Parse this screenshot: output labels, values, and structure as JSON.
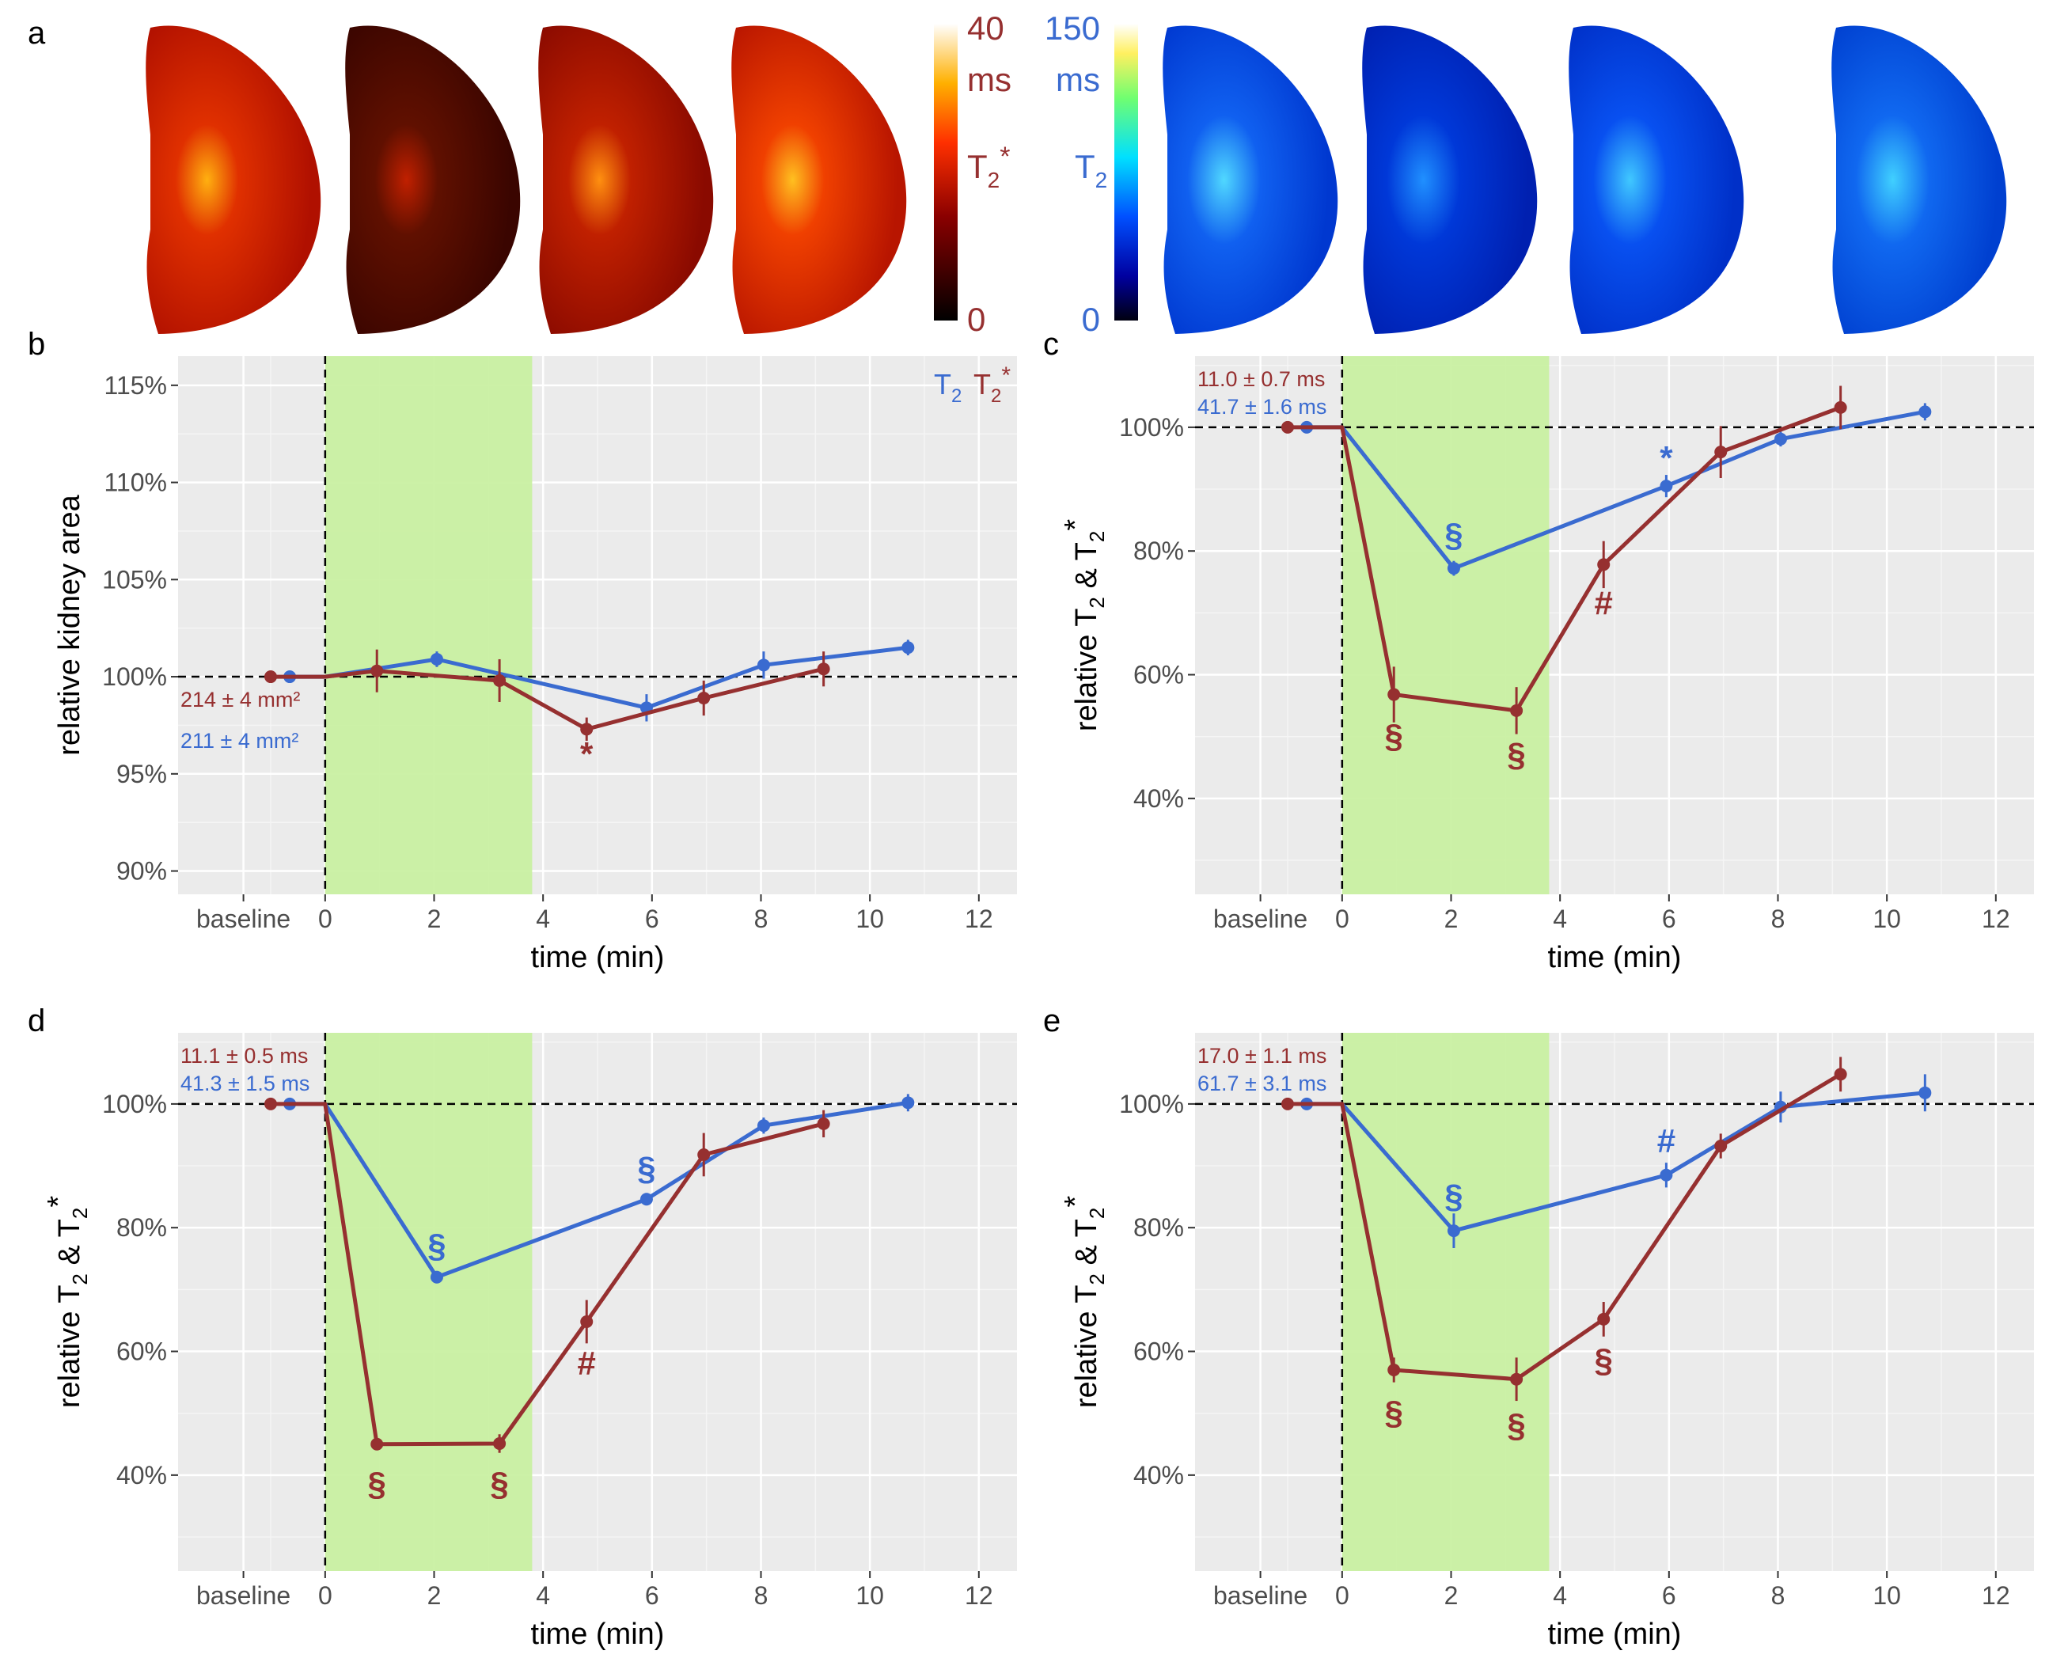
{
  "figure": {
    "panel_a": {
      "label": "a",
      "t2star_colorbar": {
        "max": "40",
        "unit": "ms",
        "name": "T",
        "sub": "2",
        "sup": "*",
        "min": "0",
        "color": "#963030"
      },
      "t2_colorbar": {
        "max": "150",
        "unit": "ms",
        "name": "T",
        "sub": "2",
        "min": "0",
        "color": "#3a6bd0"
      }
    },
    "colors": {
      "t2": "#3a6bd0",
      "t2star": "#963030",
      "occlusion": "#c8f0a0",
      "panel_bg": "#ebebeb"
    }
  },
  "chart_data": [
    {
      "panel": "b",
      "type": "line",
      "xlabel": "time (min)",
      "ylabel": "relative kidney area",
      "xlim": [
        -2.7,
        12.7
      ],
      "ylim": [
        88.8,
        116.5
      ],
      "y_is_percent": true,
      "shaded_interval": [
        0,
        3.8
      ],
      "reference_line": 100,
      "x_tick_labels": [
        {
          "x": -1.5,
          "label": "baseline"
        },
        {
          "x": 0,
          "label": "0"
        },
        {
          "x": 2,
          "label": "2"
        },
        {
          "x": 4,
          "label": "4"
        },
        {
          "x": 6,
          "label": "6"
        },
        {
          "x": 8,
          "label": "8"
        },
        {
          "x": 10,
          "label": "10"
        },
        {
          "x": 12,
          "label": "12"
        }
      ],
      "y_ticks": [
        90,
        95,
        100,
        105,
        110,
        115
      ],
      "y_tick_labels": [
        "90%",
        "95%",
        "100%",
        "105%",
        "110%",
        "115%"
      ],
      "legend": {
        "t2": "T",
        "t2_sub": "2",
        "t2star": "T",
        "t2star_sub": "2",
        "t2star_sup": "*"
      },
      "baseline_texts": [
        {
          "series": "T2*",
          "text": "214 ± 4 mm²"
        },
        {
          "series": "T2",
          "text": "211 ± 4 mm²"
        }
      ],
      "series": [
        {
          "name": "T2",
          "x": [
            -0.65,
            0,
            2.05,
            10.7
          ],
          "y": [
            100,
            100,
            100.9,
            101.5
          ],
          "err": [
            0,
            0,
            0.4,
            0.4
          ],
          "markers": [
            true,
            false,
            true,
            true
          ],
          "extra_x": [
            5.9,
            8.05
          ],
          "extra_y": [
            98.4,
            100.6
          ],
          "extra_err": [
            0.7,
            0.7
          ]
        },
        {
          "name": "T2*",
          "x": [
            -1.0,
            0,
            0.95,
            3.2,
            4.8,
            6.95,
            9.15
          ],
          "y": [
            100,
            100,
            100.3,
            99.8,
            97.3,
            98.9,
            100.4
          ],
          "err": [
            0,
            0,
            1.1,
            1.1,
            0.6,
            0.9,
            0.9
          ],
          "markers": [
            true,
            false,
            true,
            true,
            true,
            true,
            true
          ]
        }
      ],
      "significance": [
        {
          "series": "T2*",
          "x": 4.8,
          "y": 96.0,
          "text": "*"
        }
      ]
    },
    {
      "panel": "c",
      "type": "line",
      "xlabel": "time (min)",
      "ylabel": "relative T2 & T2*",
      "xlim": [
        -2.7,
        12.7
      ],
      "ylim": [
        24.5,
        111.5
      ],
      "y_is_percent": true,
      "shaded_interval": [
        0,
        3.8
      ],
      "reference_line": 100,
      "x_tick_labels": [
        {
          "x": -1.5,
          "label": "baseline"
        },
        {
          "x": 0,
          "label": "0"
        },
        {
          "x": 2,
          "label": "2"
        },
        {
          "x": 4,
          "label": "4"
        },
        {
          "x": 6,
          "label": "6"
        },
        {
          "x": 8,
          "label": "8"
        },
        {
          "x": 10,
          "label": "10"
        },
        {
          "x": 12,
          "label": "12"
        }
      ],
      "y_ticks": [
        40,
        60,
        80,
        100
      ],
      "y_tick_labels": [
        "40%",
        "60%",
        "80%",
        "100%"
      ],
      "baseline_texts": [
        {
          "series": "T2*",
          "text": "11.0 ± 0.7 ms"
        },
        {
          "series": "T2",
          "text": "41.7 ± 1.6 ms"
        }
      ],
      "series": [
        {
          "name": "T2",
          "x": [
            -0.65,
            0,
            2.05,
            5.95,
            8.05,
            10.7
          ],
          "y": [
            100,
            100,
            77.2,
            90.5,
            98.1,
            102.5
          ],
          "err": [
            0,
            0,
            1.2,
            1.8,
            1.2,
            1.4
          ],
          "markers": [
            true,
            false,
            true,
            true,
            true,
            true
          ]
        },
        {
          "name": "T2*",
          "x": [
            -1.0,
            0,
            0.95,
            3.2,
            4.8,
            6.95,
            9.15
          ],
          "y": [
            100,
            100,
            56.8,
            54.2,
            77.8,
            96.0,
            103.2
          ],
          "err": [
            0,
            0,
            4.5,
            3.8,
            3.8,
            4.2,
            3.5
          ],
          "markers": [
            true,
            false,
            true,
            true,
            true,
            true,
            true
          ]
        }
      ],
      "significance": [
        {
          "series": "T2",
          "x": 2.05,
          "y": 82.5,
          "text": "§"
        },
        {
          "series": "T2",
          "x": 5.95,
          "y": 95.0,
          "text": "*"
        },
        {
          "series": "T2*",
          "x": 0.95,
          "y": 50.0,
          "text": "§"
        },
        {
          "series": "T2*",
          "x": 3.2,
          "y": 47.0,
          "text": "§"
        },
        {
          "series": "T2*",
          "x": 4.8,
          "y": 71.5,
          "text": "#"
        }
      ]
    },
    {
      "panel": "d",
      "type": "line",
      "xlabel": "time (min)",
      "ylabel": "relative T2 & T2*",
      "xlim": [
        -2.7,
        12.7
      ],
      "ylim": [
        24.5,
        111.5
      ],
      "y_is_percent": true,
      "shaded_interval": [
        0,
        3.8
      ],
      "reference_line": 100,
      "x_tick_labels": [
        {
          "x": -1.5,
          "label": "baseline"
        },
        {
          "x": 0,
          "label": "0"
        },
        {
          "x": 2,
          "label": "2"
        },
        {
          "x": 4,
          "label": "4"
        },
        {
          "x": 6,
          "label": "6"
        },
        {
          "x": 8,
          "label": "8"
        },
        {
          "x": 10,
          "label": "10"
        },
        {
          "x": 12,
          "label": "12"
        }
      ],
      "y_ticks": [
        40,
        60,
        80,
        100
      ],
      "y_tick_labels": [
        "40%",
        "60%",
        "80%",
        "100%"
      ],
      "baseline_texts": [
        {
          "series": "T2*",
          "text": "11.1 ± 0.5 ms"
        },
        {
          "series": "T2",
          "text": "41.3 ± 1.5 ms"
        }
      ],
      "series": [
        {
          "name": "T2",
          "x": [
            -0.65,
            0,
            2.05,
            5.9,
            8.05,
            10.7
          ],
          "y": [
            100,
            100,
            72.0,
            84.6,
            96.5,
            100.2
          ],
          "err": [
            0,
            0,
            1.0,
            1.0,
            1.3,
            1.4
          ],
          "markers": [
            true,
            false,
            true,
            true,
            true,
            true
          ]
        },
        {
          "name": "T2*",
          "x": [
            -1.0,
            0,
            0.95,
            3.2,
            4.8,
            6.95,
            9.15
          ],
          "y": [
            100,
            100,
            45.0,
            45.1,
            64.8,
            91.8,
            96.8
          ],
          "err": [
            0,
            0,
            0.8,
            1.5,
            3.5,
            3.5,
            2.2
          ],
          "markers": [
            true,
            false,
            true,
            true,
            true,
            true,
            true
          ]
        }
      ],
      "significance": [
        {
          "series": "T2",
          "x": 2.05,
          "y": 77.0,
          "text": "§"
        },
        {
          "series": "T2",
          "x": 5.9,
          "y": 89.5,
          "text": "§"
        },
        {
          "series": "T2*",
          "x": 0.95,
          "y": 38.5,
          "text": "§"
        },
        {
          "series": "T2*",
          "x": 3.2,
          "y": 38.5,
          "text": "§"
        },
        {
          "series": "T2*",
          "x": 4.8,
          "y": 58.0,
          "text": "#"
        }
      ]
    },
    {
      "panel": "e",
      "type": "line",
      "xlabel": "time (min)",
      "ylabel": "relative T2 & T2*",
      "xlim": [
        -2.7,
        12.7
      ],
      "ylim": [
        24.5,
        111.5
      ],
      "y_is_percent": true,
      "shaded_interval": [
        0,
        3.8
      ],
      "reference_line": 100,
      "x_tick_labels": [
        {
          "x": -1.5,
          "label": "baseline"
        },
        {
          "x": 0,
          "label": "0"
        },
        {
          "x": 2,
          "label": "2"
        },
        {
          "x": 4,
          "label": "4"
        },
        {
          "x": 6,
          "label": "6"
        },
        {
          "x": 8,
          "label": "8"
        },
        {
          "x": 10,
          "label": "10"
        },
        {
          "x": 12,
          "label": "12"
        }
      ],
      "y_ticks": [
        40,
        60,
        80,
        100
      ],
      "y_tick_labels": [
        "40%",
        "60%",
        "80%",
        "100%"
      ],
      "baseline_texts": [
        {
          "series": "T2*",
          "text": "17.0 ± 1.1 ms"
        },
        {
          "series": "T2",
          "text": "61.7 ± 3.1 ms"
        }
      ],
      "series": [
        {
          "name": "T2",
          "x": [
            -0.65,
            0,
            2.05,
            5.95,
            8.05,
            10.7
          ],
          "y": [
            100,
            100,
            79.5,
            88.5,
            99.5,
            101.8
          ],
          "err": [
            0,
            0,
            2.8,
            2.0,
            2.5,
            3.0
          ],
          "markers": [
            true,
            false,
            true,
            true,
            true,
            true
          ]
        },
        {
          "name": "T2*",
          "x": [
            -1.0,
            0,
            0.95,
            3.2,
            4.8,
            6.95,
            9.15
          ],
          "y": [
            100,
            100,
            57.0,
            55.5,
            65.2,
            93.2,
            104.8
          ],
          "err": [
            0,
            0,
            2.0,
            3.5,
            2.8,
            2.0,
            2.8
          ],
          "markers": [
            true,
            false,
            true,
            true,
            true,
            true,
            true
          ]
        }
      ],
      "significance": [
        {
          "series": "T2",
          "x": 2.05,
          "y": 85.0,
          "text": "§"
        },
        {
          "series": "T2",
          "x": 5.95,
          "y": 94.0,
          "text": "#"
        },
        {
          "series": "T2*",
          "x": 0.95,
          "y": 50.0,
          "text": "§"
        },
        {
          "series": "T2*",
          "x": 3.2,
          "y": 48.0,
          "text": "§"
        },
        {
          "series": "T2*",
          "x": 4.8,
          "y": 58.5,
          "text": "§"
        }
      ]
    }
  ]
}
